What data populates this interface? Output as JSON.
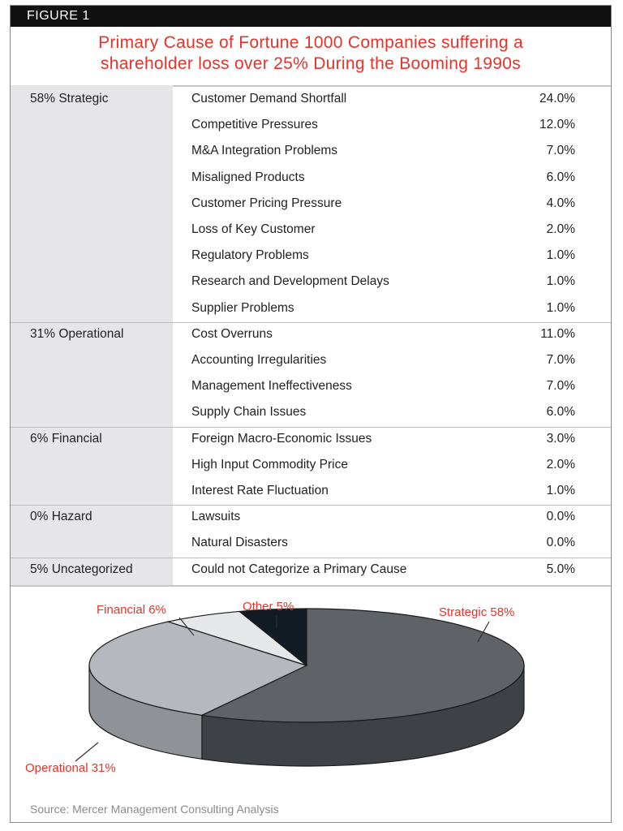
{
  "figure_label": "FIGURE 1",
  "title_line1": "Primary Cause of Fortune 1000 Companies suffering a",
  "title_line2": "shareholder loss over 25% During the Booming 1990s",
  "groups": [
    {
      "label": "58% Strategic",
      "rows": [
        {
          "cause": "Customer Demand Shortfall",
          "value": "24.0%"
        },
        {
          "cause": "Competitive Pressures",
          "value": "12.0%"
        },
        {
          "cause": "M&A Integration Problems",
          "value": "7.0%"
        },
        {
          "cause": "Misaligned Products",
          "value": "6.0%"
        },
        {
          "cause": "Customer Pricing Pressure",
          "value": "4.0%"
        },
        {
          "cause": "Loss of Key Customer",
          "value": "2.0%"
        },
        {
          "cause": "Regulatory Problems",
          "value": "1.0%"
        },
        {
          "cause": "Research and Development Delays",
          "value": "1.0%"
        },
        {
          "cause": "Supplier Problems",
          "value": "1.0%"
        }
      ]
    },
    {
      "label": "31% Operational",
      "rows": [
        {
          "cause": "Cost Overruns",
          "value": "11.0%"
        },
        {
          "cause": "Accounting Irregularities",
          "value": "7.0%"
        },
        {
          "cause": "Management Ineffectiveness",
          "value": "7.0%"
        },
        {
          "cause": "Supply Chain Issues",
          "value": "6.0%"
        }
      ]
    },
    {
      "label": "6% Financial",
      "rows": [
        {
          "cause": "Foreign Macro-Economic Issues",
          "value": "3.0%"
        },
        {
          "cause": "High Input Commodity Price",
          "value": "2.0%"
        },
        {
          "cause": "Interest Rate Fluctuation",
          "value": "1.0%"
        }
      ]
    },
    {
      "label": "0% Hazard",
      "rows": [
        {
          "cause": "Lawsuits",
          "value": "0.0%"
        },
        {
          "cause": "Natural Disasters",
          "value": "0.0%"
        }
      ]
    },
    {
      "label": "5% Uncategorized",
      "rows": [
        {
          "cause": "Could not Categorize a Primary Cause",
          "value": "5.0%"
        }
      ]
    }
  ],
  "chart_data": {
    "type": "pie",
    "title": "Primary Cause of Fortune 1000 Companies suffering a shareholder loss over 25% During the Booming 1990s",
    "slices": [
      {
        "label": "Strategic 58%",
        "name": "Strategic",
        "value": 58,
        "color": "#5f6368",
        "side_color": "#3e4145"
      },
      {
        "label": "Operational 31%",
        "name": "Operational",
        "value": 31,
        "color": "#b5b8bc",
        "side_color": "#8f9297"
      },
      {
        "label": "Financial 6%",
        "name": "Financial",
        "value": 6,
        "color": "#e6e7e9",
        "side_color": "#c3c5c8"
      },
      {
        "label": "Other 5%",
        "name": "Other",
        "value": 5,
        "color": "#121b23",
        "side_color": "#0a0f14"
      }
    ]
  },
  "source": "Source: Mercer Management Consulting Analysis",
  "colors": {
    "title_red": "#e8322a",
    "header_black": "#111111",
    "left_col_gray": "#e6e6e8"
  }
}
